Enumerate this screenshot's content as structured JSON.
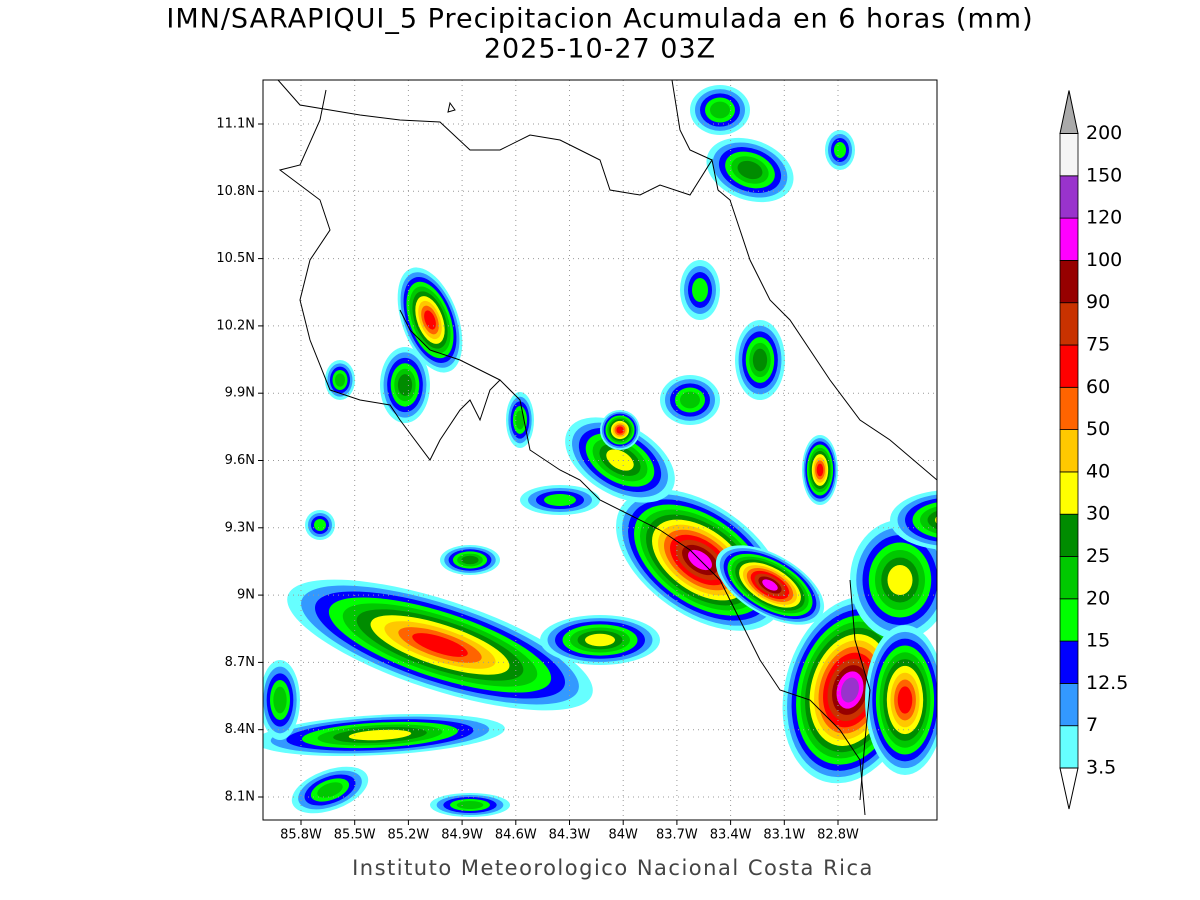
{
  "title": "IMN/SARAPIQUI_5 Precipitacion Acumulada en 6 horas (mm)",
  "subtitle": "2025-10-27 03Z",
  "map": {
    "lon_ticks": [
      "85.8W",
      "85.5W",
      "85.2W",
      "84.9W",
      "84.6W",
      "84.3W",
      "84W",
      "83.7W",
      "83.4W",
      "83.1W",
      "82.8W"
    ],
    "lat_ticks": [
      "8.1N",
      "8.4N",
      "8.7N",
      "9N",
      "9.3N",
      "9.6N",
      "9.9N",
      "10.2N",
      "10.5N",
      "10.8N",
      "11.1N"
    ]
  },
  "colorbar": {
    "levels": [
      3.5,
      7,
      12.5,
      15,
      20,
      25,
      30,
      40,
      50,
      60,
      75,
      90,
      100,
      120,
      150,
      200
    ],
    "colors": [
      "#66ffff",
      "#3399ff",
      "#0000ff",
      "#00ff00",
      "#00c800",
      "#008c00",
      "#ffff00",
      "#ffc800",
      "#ff6400",
      "#ff0000",
      "#c83200",
      "#960000",
      "#ff00ff",
      "#9933cc",
      "#f5f5f5"
    ],
    "under_color": "#ffffff",
    "over_color": "#aaaaaa"
  },
  "footer": "Instituto Meteorologico Nacional Costa Rica"
}
